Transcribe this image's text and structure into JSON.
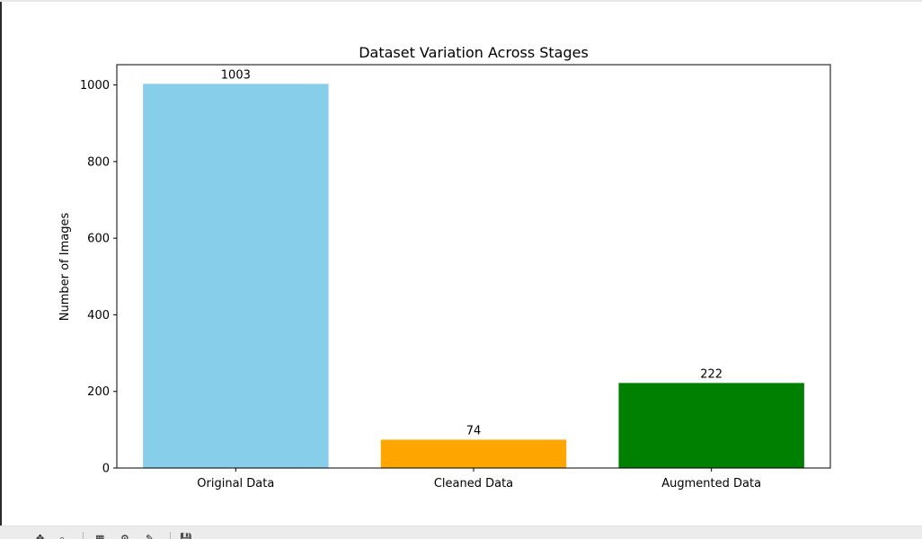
{
  "toolbar": {
    "items": [
      "pan-icon",
      "zoom-icon",
      "subplots-icon",
      "configure-icon",
      "save-icon"
    ]
  },
  "chart_data": {
    "type": "bar",
    "title": "Dataset Variation Across Stages",
    "xlabel": "",
    "ylabel": "Number of Images",
    "categories": [
      "Original Data",
      "Cleaned Data",
      "Augmented Data"
    ],
    "values": [
      1003,
      74,
      222
    ],
    "value_labels": [
      "1003",
      "74",
      "222"
    ],
    "colors": [
      "#87ceeb",
      "#ffa500",
      "#008000"
    ],
    "ylim": [
      0,
      1053
    ],
    "yticks": [
      0,
      200,
      400,
      600,
      800,
      1000
    ],
    "grid": false,
    "legend": "none"
  }
}
